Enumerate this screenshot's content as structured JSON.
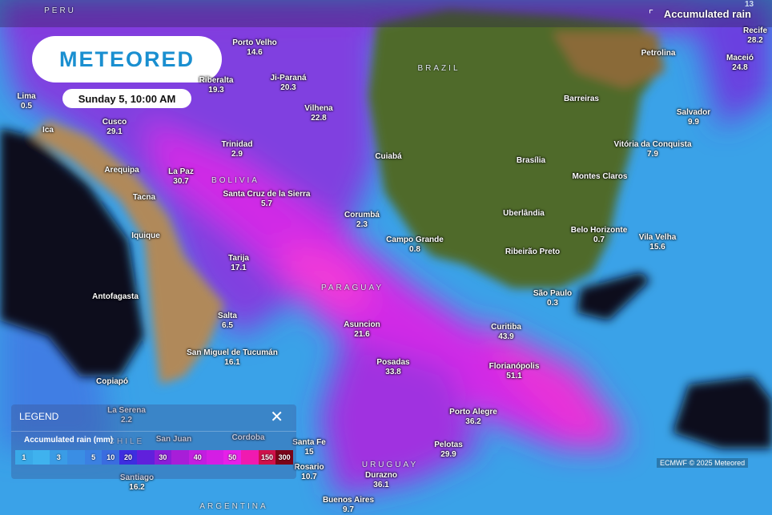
{
  "header": {
    "layer_title": "Accumulated rain",
    "layer_icon": "corner-icon",
    "frame_number": "13"
  },
  "logo": "METEORED",
  "date": "Sunday 5, 10:00 AM",
  "countries": [
    "PERU",
    "BRAZIL",
    "BOLIVIA",
    "PARAGUAY",
    "CHILE",
    "URUGUAY",
    "ARGENTINA"
  ],
  "cities": [
    {
      "name": "Lima",
      "value": "0.5"
    },
    {
      "name": "Ica",
      "value": ""
    },
    {
      "name": "Cusco",
      "value": "29.1"
    },
    {
      "name": "Arequipa",
      "value": ""
    },
    {
      "name": "Tacna",
      "value": ""
    },
    {
      "name": "La Paz",
      "value": "30.7"
    },
    {
      "name": "Iquique",
      "value": ""
    },
    {
      "name": "Antofagasta",
      "value": ""
    },
    {
      "name": "Tarija",
      "value": "17.1"
    },
    {
      "name": "Salta",
      "value": "6.5"
    },
    {
      "name": "Copiapó",
      "value": ""
    },
    {
      "name": "San Miguel de Tucumán",
      "value": "16.1"
    },
    {
      "name": "La Serena",
      "value": "2.2"
    },
    {
      "name": "San Juan",
      "value": ""
    },
    {
      "name": "Cordoba",
      "value": ""
    },
    {
      "name": "Santiago",
      "value": "16.2"
    },
    {
      "name": "Santa Fe",
      "value": "15"
    },
    {
      "name": "Rosario",
      "value": "10.7"
    },
    {
      "name": "Buenos Aires",
      "value": "9.7"
    },
    {
      "name": "Durazno",
      "value": "36.1"
    },
    {
      "name": "Pelotas",
      "value": "29.9"
    },
    {
      "name": "Porto Alegre",
      "value": "36.2"
    },
    {
      "name": "Florianópolis",
      "value": "51.1"
    },
    {
      "name": "Curitiba",
      "value": "43.9"
    },
    {
      "name": "Posadas",
      "value": "33.8"
    },
    {
      "name": "Asuncion",
      "value": "21.6"
    },
    {
      "name": "São Paulo",
      "value": "0.3"
    },
    {
      "name": "Campo Grande",
      "value": "0.8"
    },
    {
      "name": "Corumbá",
      "value": "2.3"
    },
    {
      "name": "Santa Cruz de la Sierra",
      "value": "5.7"
    },
    {
      "name": "Trinidad",
      "value": "2.9"
    },
    {
      "name": "Riberalta",
      "value": "19.3"
    },
    {
      "name": "Porto Velho",
      "value": "14.6"
    },
    {
      "name": "Ji-Paraná",
      "value": "20.3"
    },
    {
      "name": "Vilhena",
      "value": "22.8"
    },
    {
      "name": "Cuiabá",
      "value": ""
    },
    {
      "name": "Brasília",
      "value": ""
    },
    {
      "name": "Barreiras",
      "value": ""
    },
    {
      "name": "Petrolina",
      "value": ""
    },
    {
      "name": "Recife",
      "value": "28.2"
    },
    {
      "name": "Maceió",
      "value": "24.8"
    },
    {
      "name": "Salvador",
      "value": "9.9"
    },
    {
      "name": "Vitória da Conquista",
      "value": "7.9"
    },
    {
      "name": "Montes Claros",
      "value": ""
    },
    {
      "name": "Uberlândia",
      "value": ""
    },
    {
      "name": "Belo Horizonte",
      "value": "0.7"
    },
    {
      "name": "Vila Velha",
      "value": "15.6"
    },
    {
      "name": "Ribeirão Preto",
      "value": ""
    }
  ],
  "legend": {
    "title": "LEGEND",
    "close_icon": "close-icon",
    "subtitle": "Accumulated rain (mm)",
    "scale": [
      {
        "label": "1",
        "color": "#3aa9e8"
      },
      {
        "label": "",
        "color": "#3fb2ee"
      },
      {
        "label": "3",
        "color": "#3a9ce6"
      },
      {
        "label": "",
        "color": "#3a8ee4"
      },
      {
        "label": "5",
        "color": "#3b80e2"
      },
      {
        "label": "10",
        "color": "#3a6ce0"
      },
      {
        "label": "20",
        "color": "#3d2ee0"
      },
      {
        "label": "",
        "color": "#6020dc"
      },
      {
        "label": "30",
        "color": "#8a1ed8"
      },
      {
        "label": "",
        "color": "#a81ed8"
      },
      {
        "label": "40",
        "color": "#c21ee0"
      },
      {
        "label": "",
        "color": "#d41ee4"
      },
      {
        "label": "50",
        "color": "#e620e8"
      },
      {
        "label": "",
        "color": "#f01ab0"
      },
      {
        "label": "150",
        "color": "#d0104a"
      },
      {
        "label": "300",
        "color": "#7a0418"
      }
    ]
  },
  "attribution": "ECMWF © 2025 Meteored"
}
